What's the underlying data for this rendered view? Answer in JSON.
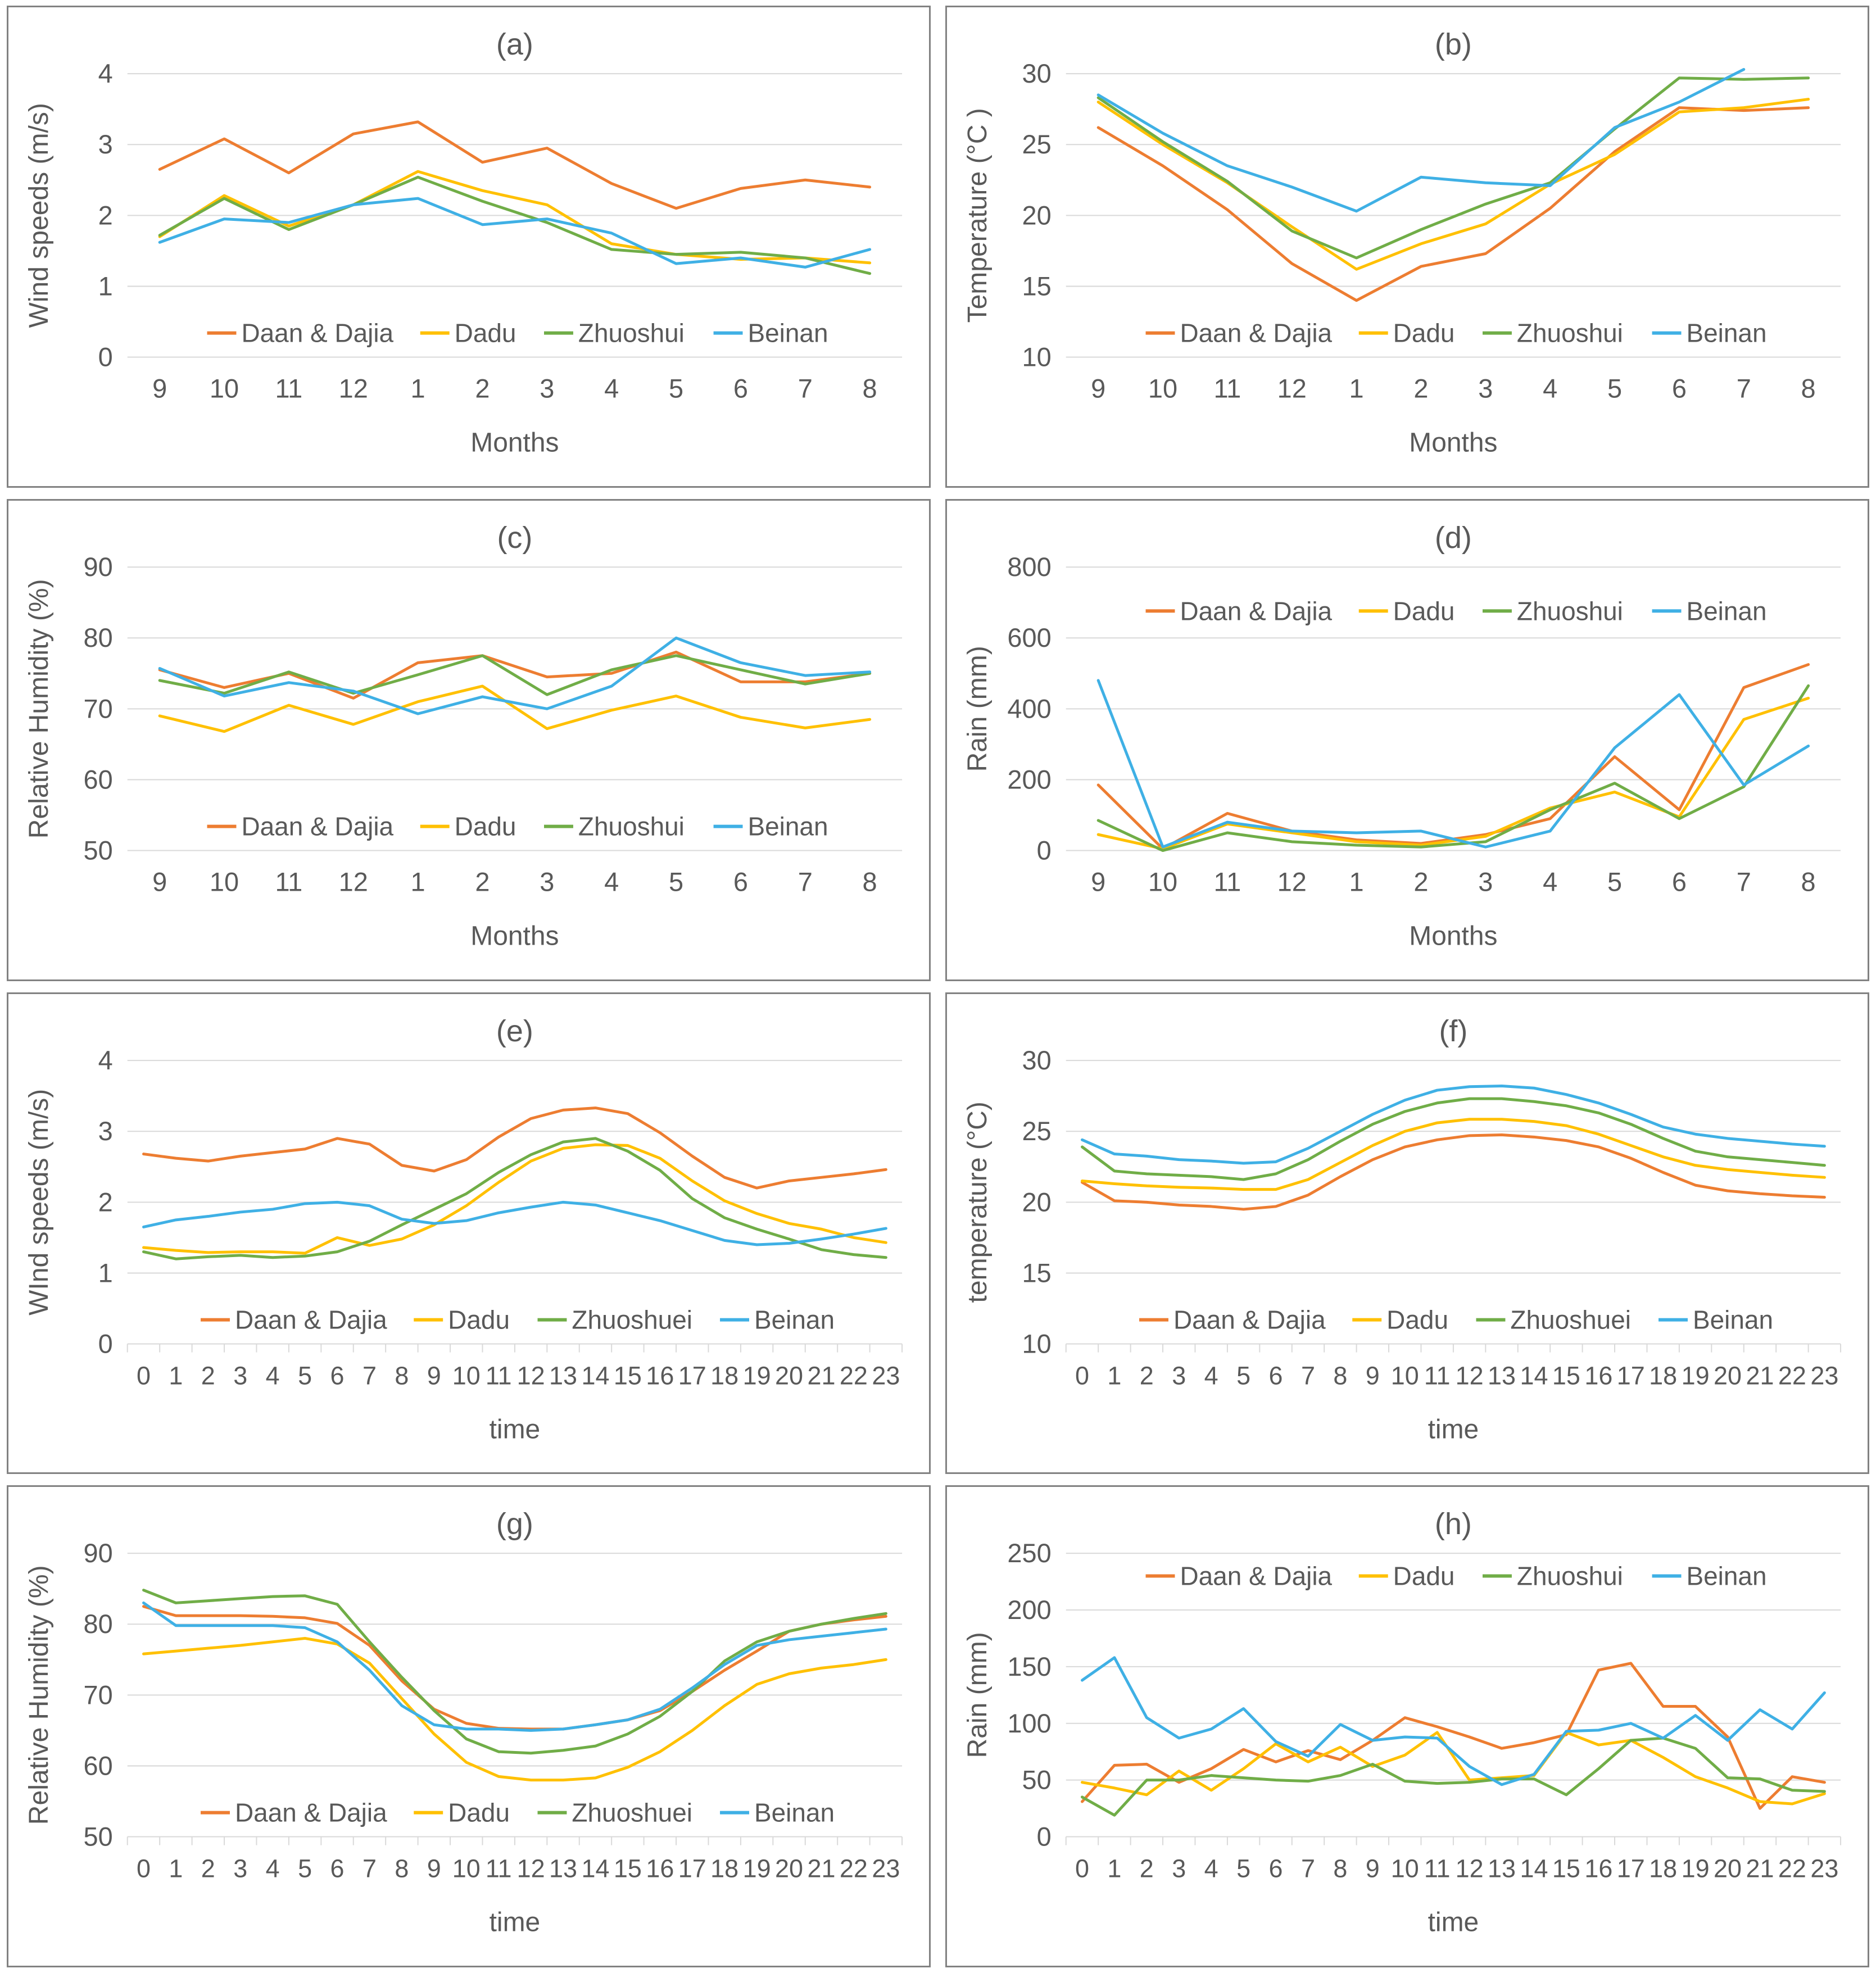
{
  "page": {
    "background": "#ffffff"
  },
  "palette": {
    "daan_dajia": "#ED7D31",
    "dadu": "#FFC000",
    "zhuoshui": "#70AD47",
    "beinan": "#3FB0E5",
    "text": "#595959",
    "gridline": "#D9D9D9",
    "panel_border": "#828282"
  },
  "chart_data": [
    {
      "id": "a",
      "type": "line",
      "title": "(a)",
      "xlabel": "Months",
      "ylabel": "Wind speeds (m/s)",
      "ylim": [
        0,
        4
      ],
      "yticks": [
        0,
        1,
        2,
        3,
        4
      ],
      "grid": true,
      "x_tick_marks": false,
      "legend_position": "bottom-inside",
      "legend_y_frac": 0.915,
      "categories": [
        "9",
        "10",
        "11",
        "12",
        "1",
        "2",
        "3",
        "4",
        "5",
        "6",
        "7",
        "8"
      ],
      "series": [
        {
          "name": "Daan & Dajia",
          "color": "#ED7D31",
          "values": [
            2.65,
            3.08,
            2.6,
            3.15,
            3.32,
            2.75,
            2.95,
            2.45,
            2.1,
            2.38,
            2.5,
            2.4
          ]
        },
        {
          "name": "Dadu",
          "color": "#FFC000",
          "values": [
            1.7,
            2.28,
            1.85,
            2.15,
            2.62,
            2.35,
            2.15,
            1.6,
            1.45,
            1.38,
            1.4,
            1.33
          ]
        },
        {
          "name": "Zhuoshui",
          "color": "#70AD47",
          "values": [
            1.72,
            2.24,
            1.8,
            2.15,
            2.54,
            2.2,
            1.9,
            1.52,
            1.45,
            1.48,
            1.4,
            1.18
          ]
        },
        {
          "name": "Beinan",
          "color": "#3FB0E5",
          "values": [
            1.62,
            1.95,
            1.9,
            2.15,
            2.24,
            1.87,
            1.95,
            1.75,
            1.32,
            1.4,
            1.27,
            1.52
          ]
        }
      ]
    },
    {
      "id": "b",
      "type": "line",
      "title": "(b)",
      "xlabel": "Months",
      "ylabel": "Temperature (°C )",
      "ylim": [
        10,
        30
      ],
      "yticks": [
        10,
        15,
        20,
        25,
        30
      ],
      "grid": true,
      "x_tick_marks": false,
      "legend_position": "bottom-inside",
      "legend_y_frac": 0.915,
      "categories": [
        "9",
        "10",
        "11",
        "12",
        "1",
        "2",
        "3",
        "4",
        "5",
        "6",
        "7",
        "8"
      ],
      "series": [
        {
          "name": "Daan & Dajia",
          "color": "#ED7D31",
          "values": [
            26.2,
            23.5,
            20.4,
            16.6,
            14.0,
            16.4,
            17.3,
            20.5,
            24.5,
            27.6,
            27.4,
            27.6
          ]
        },
        {
          "name": "Dadu",
          "color": "#FFC000",
          "values": [
            28.0,
            25.0,
            22.3,
            19.2,
            16.2,
            18.0,
            19.4,
            22.2,
            24.3,
            27.3,
            27.6,
            28.2
          ]
        },
        {
          "name": "Zhuoshui",
          "color": "#70AD47",
          "values": [
            28.3,
            25.2,
            22.4,
            18.9,
            17.0,
            19.0,
            20.8,
            22.3,
            26.1,
            29.7,
            29.6,
            29.7
          ]
        },
        {
          "name": "Beinan",
          "color": "#3FB0E5",
          "values": [
            28.5,
            25.8,
            23.5,
            22.0,
            20.3,
            22.7,
            22.3,
            22.1,
            26.2,
            28.0,
            30.3,
            null
          ]
        }
      ]
    },
    {
      "id": "c",
      "type": "line",
      "title": "(c)",
      "xlabel": "Months",
      "ylabel": "Relative Humidity (%)",
      "ylim": [
        50,
        90
      ],
      "yticks": [
        50,
        60,
        70,
        80,
        90
      ],
      "grid": true,
      "x_tick_marks": false,
      "legend_position": "bottom-inside",
      "legend_y_frac": 0.915,
      "categories": [
        "9",
        "10",
        "11",
        "12",
        "1",
        "2",
        "3",
        "4",
        "5",
        "6",
        "7",
        "8"
      ],
      "series": [
        {
          "name": "Daan & Dajia",
          "color": "#ED7D31",
          "values": [
            75.5,
            73.0,
            75.0,
            71.5,
            76.5,
            77.5,
            74.5,
            75.0,
            78.0,
            73.8,
            73.8,
            75.0
          ]
        },
        {
          "name": "Dadu",
          "color": "#FFC000",
          "values": [
            69.0,
            66.8,
            70.5,
            67.8,
            71.0,
            73.2,
            67.2,
            69.8,
            71.8,
            68.8,
            67.3,
            68.5
          ]
        },
        {
          "name": "Zhuoshui",
          "color": "#70AD47",
          "values": [
            74.0,
            72.2,
            75.2,
            72.2,
            74.8,
            77.5,
            72.0,
            75.5,
            77.5,
            75.5,
            73.5,
            75.0
          ]
        },
        {
          "name": "Beinan",
          "color": "#3FB0E5",
          "values": [
            75.7,
            71.8,
            73.7,
            72.5,
            69.3,
            71.7,
            70.0,
            73.2,
            80.0,
            76.5,
            74.7,
            75.2
          ]
        }
      ]
    },
    {
      "id": "d",
      "type": "line",
      "title": "(d)",
      "xlabel": "Months",
      "ylabel": "Rain (mm)",
      "ylim": [
        0,
        800
      ],
      "yticks": [
        0,
        200,
        400,
        600,
        800
      ],
      "grid": true,
      "x_tick_marks": false,
      "legend_position": "top-inside",
      "legend_y_frac": 0.155,
      "categories": [
        "9",
        "10",
        "11",
        "12",
        "1",
        "2",
        "3",
        "4",
        "5",
        "6",
        "7",
        "8"
      ],
      "series": [
        {
          "name": "Daan & Dajia",
          "color": "#ED7D31",
          "values": [
            185,
            5,
            105,
            55,
            30,
            20,
            45,
            90,
            265,
            115,
            460,
            525
          ]
        },
        {
          "name": "Dadu",
          "color": "#FFC000",
          "values": [
            45,
            5,
            75,
            50,
            25,
            15,
            40,
            120,
            165,
            95,
            370,
            430
          ]
        },
        {
          "name": "Zhuoshui",
          "color": "#70AD47",
          "values": [
            85,
            0,
            50,
            25,
            15,
            10,
            25,
            115,
            190,
            90,
            180,
            465
          ]
        },
        {
          "name": "Beinan",
          "color": "#3FB0E5",
          "values": [
            480,
            10,
            80,
            55,
            50,
            55,
            10,
            55,
            290,
            440,
            185,
            295
          ]
        }
      ]
    },
    {
      "id": "e",
      "type": "line",
      "title": "(e)",
      "xlabel": "time",
      "ylabel": "WInd speeds (m/s)",
      "ylim": [
        0,
        4
      ],
      "yticks": [
        0,
        1,
        2,
        3,
        4
      ],
      "grid": true,
      "x_tick_marks": true,
      "legend_position": "bottom-inside",
      "legend_y_frac": 0.915,
      "categories": [
        "0",
        "1",
        "2",
        "3",
        "4",
        "5",
        "6",
        "7",
        "8",
        "9",
        "10",
        "11",
        "12",
        "13",
        "14",
        "15",
        "16",
        "17",
        "18",
        "19",
        "20",
        "21",
        "22",
        "23"
      ],
      "series": [
        {
          "name": "Daan & Dajia",
          "color": "#ED7D31",
          "values": [
            2.68,
            2.62,
            2.58,
            2.65,
            2.7,
            2.75,
            2.9,
            2.82,
            2.52,
            2.44,
            2.6,
            2.92,
            3.18,
            3.3,
            3.33,
            3.25,
            2.98,
            2.65,
            2.35,
            2.2,
            2.3,
            2.35,
            2.4,
            2.46
          ]
        },
        {
          "name": "Dadu",
          "color": "#FFC000",
          "values": [
            1.36,
            1.32,
            1.29,
            1.3,
            1.3,
            1.28,
            1.5,
            1.39,
            1.48,
            1.68,
            1.95,
            2.28,
            2.58,
            2.76,
            2.81,
            2.8,
            2.62,
            2.3,
            2.02,
            1.84,
            1.7,
            1.62,
            1.5,
            1.43
          ]
        },
        {
          "name": "Zhuoshuei",
          "color": "#70AD47",
          "values": [
            1.3,
            1.2,
            1.23,
            1.25,
            1.22,
            1.24,
            1.3,
            1.45,
            1.68,
            1.9,
            2.12,
            2.42,
            2.67,
            2.85,
            2.9,
            2.72,
            2.45,
            2.05,
            1.78,
            1.62,
            1.48,
            1.33,
            1.26,
            1.22
          ]
        },
        {
          "name": "Beinan",
          "color": "#3FB0E5",
          "values": [
            1.65,
            1.75,
            1.8,
            1.86,
            1.9,
            1.98,
            2.0,
            1.95,
            1.76,
            1.7,
            1.74,
            1.85,
            1.93,
            2.0,
            1.96,
            1.85,
            1.74,
            1.6,
            1.46,
            1.4,
            1.42,
            1.48,
            1.55,
            1.63
          ]
        }
      ]
    },
    {
      "id": "f",
      "type": "line",
      "title": "(f)",
      "xlabel": "time",
      "ylabel": "temperature (°C)",
      "ylim": [
        10,
        30
      ],
      "yticks": [
        10,
        15,
        20,
        25,
        30
      ],
      "grid": true,
      "x_tick_marks": true,
      "legend_position": "bottom-inside",
      "legend_y_frac": 0.915,
      "categories": [
        "0",
        "1",
        "2",
        "3",
        "4",
        "5",
        "6",
        "7",
        "8",
        "9",
        "10",
        "11",
        "12",
        "13",
        "14",
        "15",
        "16",
        "17",
        "18",
        "19",
        "20",
        "21",
        "22",
        "23"
      ],
      "series": [
        {
          "name": "Daan & Dajia",
          "color": "#ED7D31",
          "values": [
            21.4,
            20.1,
            20.0,
            19.8,
            19.7,
            19.5,
            19.7,
            20.5,
            21.8,
            23.0,
            23.9,
            24.4,
            24.7,
            24.75,
            24.6,
            24.35,
            23.9,
            23.1,
            22.1,
            21.2,
            20.8,
            20.6,
            20.45,
            20.35
          ]
        },
        {
          "name": "Dadu",
          "color": "#FFC000",
          "values": [
            21.5,
            21.3,
            21.15,
            21.05,
            21.0,
            20.9,
            20.9,
            21.6,
            22.8,
            24.0,
            25.0,
            25.6,
            25.85,
            25.85,
            25.7,
            25.4,
            24.8,
            24.0,
            23.2,
            22.6,
            22.3,
            22.1,
            21.9,
            21.75
          ]
        },
        {
          "name": "Zhuoshuei",
          "color": "#70AD47",
          "values": [
            23.9,
            22.2,
            22.0,
            21.9,
            21.8,
            21.6,
            22.0,
            23.0,
            24.3,
            25.5,
            26.4,
            27.0,
            27.3,
            27.3,
            27.1,
            26.8,
            26.3,
            25.5,
            24.5,
            23.6,
            23.2,
            23.0,
            22.8,
            22.6
          ]
        },
        {
          "name": "Beinan",
          "color": "#3FB0E5",
          "values": [
            24.4,
            23.4,
            23.25,
            23.0,
            22.9,
            22.75,
            22.85,
            23.8,
            25.0,
            26.2,
            27.2,
            27.9,
            28.15,
            28.2,
            28.05,
            27.6,
            27.0,
            26.2,
            25.3,
            24.8,
            24.5,
            24.3,
            24.1,
            23.95
          ]
        }
      ]
    },
    {
      "id": "g",
      "type": "line",
      "title": "(g)",
      "xlabel": "time",
      "ylabel": "Relative Humidity (%)",
      "ylim": [
        50,
        90
      ],
      "yticks": [
        50,
        60,
        70,
        80,
        90
      ],
      "grid": true,
      "x_tick_marks": true,
      "legend_position": "bottom-inside",
      "legend_y_frac": 0.915,
      "categories": [
        "0",
        "1",
        "2",
        "3",
        "4",
        "5",
        "6",
        "7",
        "8",
        "9",
        "10",
        "11",
        "12",
        "13",
        "14",
        "15",
        "16",
        "17",
        "18",
        "19",
        "20",
        "21",
        "22",
        "23"
      ],
      "series": [
        {
          "name": "Daan & Dajia",
          "color": "#ED7D31",
          "values": [
            82.5,
            81.2,
            81.2,
            81.2,
            81.1,
            80.9,
            80.1,
            77.0,
            72.0,
            68.0,
            66.0,
            65.3,
            65.2,
            65.2,
            65.8,
            66.5,
            67.8,
            70.5,
            73.5,
            76.2,
            79.0,
            80.0,
            80.6,
            81.1
          ]
        },
        {
          "name": "Dadu",
          "color": "#FFC000",
          "values": [
            75.8,
            76.2,
            76.6,
            77.0,
            77.5,
            78.0,
            77.2,
            74.5,
            69.5,
            64.5,
            60.5,
            58.5,
            58.0,
            58.0,
            58.3,
            59.8,
            62.0,
            65.0,
            68.5,
            71.5,
            73.0,
            73.8,
            74.3,
            75.0
          ]
        },
        {
          "name": "Zhuoshuei",
          "color": "#70AD47",
          "values": [
            84.8,
            83.0,
            83.3,
            83.6,
            83.9,
            84.0,
            82.8,
            77.5,
            72.5,
            67.8,
            63.8,
            62.0,
            61.8,
            62.2,
            62.8,
            64.5,
            67.0,
            70.5,
            74.8,
            77.5,
            79.0,
            80.0,
            80.8,
            81.5
          ]
        },
        {
          "name": "Beinan",
          "color": "#3FB0E5",
          "values": [
            83.0,
            79.8,
            79.8,
            79.8,
            79.8,
            79.5,
            77.5,
            73.5,
            68.5,
            65.8,
            65.2,
            65.2,
            65.0,
            65.2,
            65.8,
            66.5,
            68.0,
            71.0,
            74.3,
            77.0,
            77.8,
            78.3,
            78.8,
            79.3
          ]
        }
      ]
    },
    {
      "id": "h",
      "type": "line",
      "title": "(h)",
      "xlabel": "time",
      "ylabel": "Rain (mm)",
      "ylim": [
        0,
        250
      ],
      "yticks": [
        0,
        50,
        100,
        150,
        200,
        250
      ],
      "grid": true,
      "x_tick_marks": true,
      "legend_position": "top-inside",
      "legend_y_frac": 0.08,
      "categories": [
        "0",
        "1",
        "2",
        "3",
        "4",
        "5",
        "6",
        "7",
        "8",
        "9",
        "10",
        "11",
        "12",
        "13",
        "14",
        "15",
        "16",
        "17",
        "18",
        "19",
        "20",
        "21",
        "22",
        "23"
      ],
      "series": [
        {
          "name": "Daan & Dajia",
          "color": "#ED7D31",
          "values": [
            31,
            63,
            64,
            48,
            60,
            77,
            66,
            76,
            68,
            85,
            105,
            97,
            88,
            78,
            83,
            90,
            147,
            153,
            115,
            115,
            88,
            25,
            53,
            48
          ]
        },
        {
          "name": "Dadu",
          "color": "#FFC000",
          "values": [
            48,
            43,
            37,
            58,
            41,
            60,
            82,
            66,
            79,
            62,
            72,
            92,
            50,
            52,
            54,
            92,
            81,
            85,
            70,
            53,
            43,
            31,
            29,
            38
          ]
        },
        {
          "name": "Zhuoshui",
          "color": "#70AD47",
          "values": [
            35,
            19,
            50,
            50,
            54,
            52,
            50,
            49,
            54,
            64,
            49,
            47,
            48,
            51,
            51,
            37,
            60,
            85,
            87,
            78,
            52,
            51,
            41,
            40
          ]
        },
        {
          "name": "Beinan",
          "color": "#3FB0E5",
          "values": [
            138,
            158,
            105,
            87,
            95,
            113,
            84,
            71,
            99,
            85,
            88,
            87,
            62,
            46,
            55,
            93,
            94,
            100,
            87,
            107,
            85,
            112,
            95,
            127
          ]
        }
      ]
    }
  ]
}
